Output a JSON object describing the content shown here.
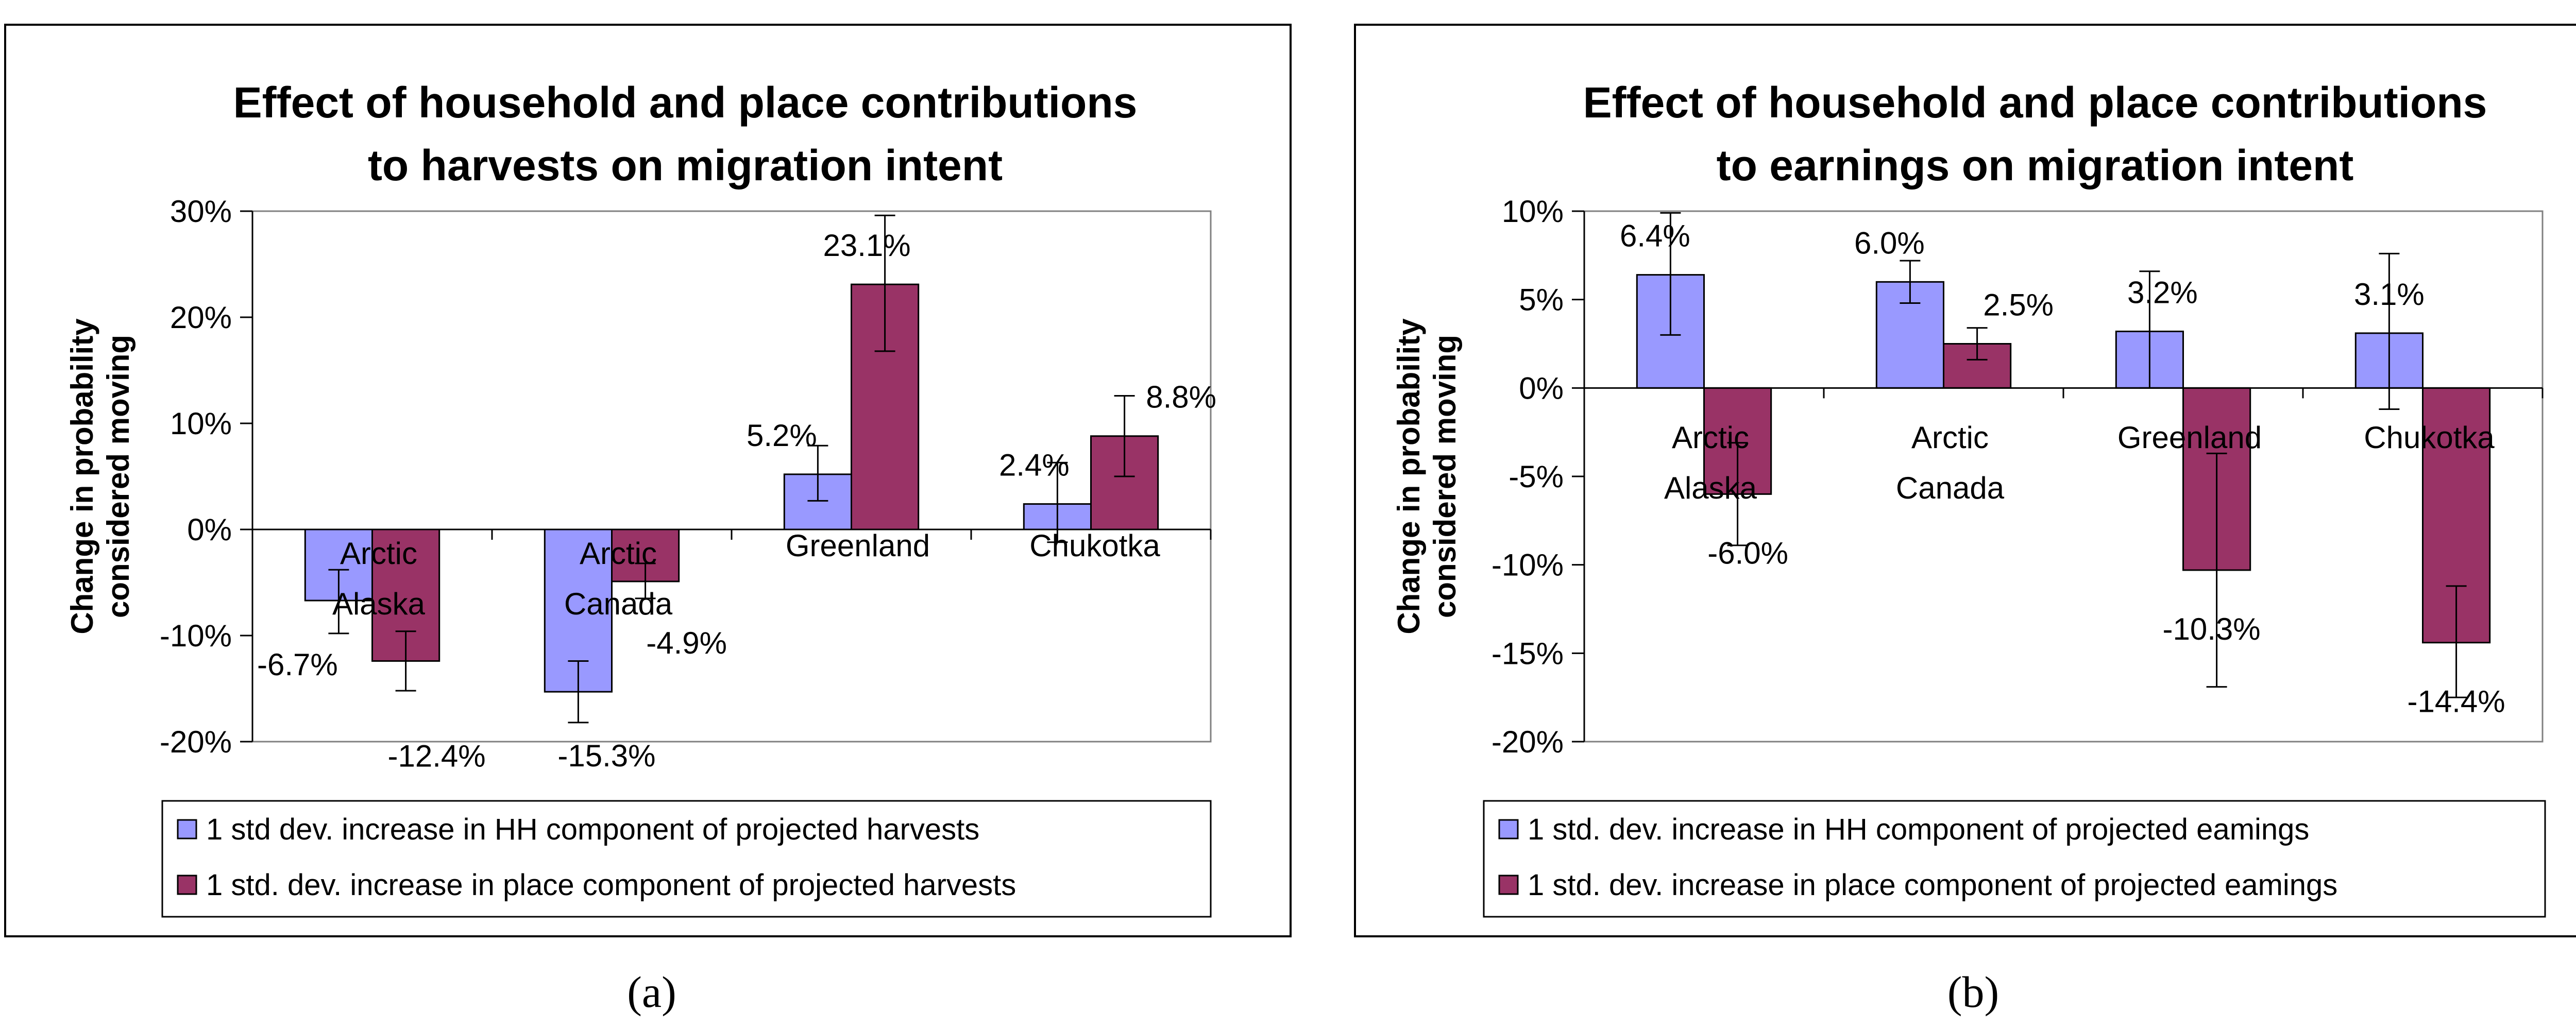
{
  "chart_data": [
    {
      "type": "bar",
      "panel_label": "(a)",
      "title_lines": [
        "Effect of household and place contributions",
        "to harvests on migration intent"
      ],
      "ylabel_lines": [
        "Change in probability",
        "considered moving"
      ],
      "ylim": [
        -0.2,
        0.3
      ],
      "yticks": [
        -0.2,
        -0.1,
        0,
        0.1,
        0.2,
        0.3
      ],
      "ytick_labels": [
        "-20%",
        "-10%",
        "0%",
        "10%",
        "20%",
        "30%"
      ],
      "categories": [
        [
          "Arctic",
          "Alaska"
        ],
        [
          "Arctic",
          "Canada"
        ],
        [
          "Greenland"
        ],
        [
          "Chukotka"
        ]
      ],
      "series": [
        {
          "name": "1 std dev. increase in HH component of projected harvests",
          "color": "#9999ff",
          "values": [
            -0.067,
            -0.153,
            0.052,
            0.024
          ],
          "labels": [
            "-6.7%",
            "-15.3%",
            "5.2%",
            "2.4%"
          ],
          "err_low": [
            -0.098,
            -0.182,
            0.027,
            -0.012
          ],
          "err_high": [
            -0.038,
            -0.124,
            0.079,
            0.063
          ]
        },
        {
          "name": "1 std. dev. increase in place component of projected harvests",
          "color": "#993366",
          "values": [
            -0.124,
            -0.049,
            0.231,
            0.088
          ],
          "labels": [
            "-12.4%",
            "-4.9%",
            "23.1%",
            "8.8%"
          ],
          "err_low": [
            -0.152,
            -0.065,
            0.168,
            0.05
          ],
          "err_high": [
            -0.096,
            -0.032,
            0.296,
            0.126
          ]
        }
      ],
      "legend_position": "bottom"
    },
    {
      "type": "bar",
      "panel_label": "(b)",
      "title_lines": [
        "Effect of household and place contributions",
        "to earnings on migration intent"
      ],
      "ylabel_lines": [
        "Change in probability",
        "considered moving"
      ],
      "ylim": [
        -0.2,
        0.1
      ],
      "yticks": [
        -0.2,
        -0.15,
        -0.1,
        -0.05,
        0,
        0.05,
        0.1
      ],
      "ytick_labels": [
        "-20%",
        "-15%",
        "-10%",
        "-5%",
        "0%",
        "5%",
        "10%"
      ],
      "categories": [
        [
          "Arctic",
          "Alaska"
        ],
        [
          "Arctic",
          "Canada"
        ],
        [
          "Greenland"
        ],
        [
          "Chukotka"
        ]
      ],
      "series": [
        {
          "name": "1 std. dev. increase in HH component of projected eamings",
          "color": "#9999ff",
          "values": [
            0.064,
            0.06,
            0.032,
            0.031
          ],
          "labels": [
            "6.4%",
            "6.0%",
            "3.2%",
            "3.1%"
          ],
          "err_low": [
            0.03,
            0.048,
            0.0,
            -0.012
          ],
          "err_high": [
            0.099,
            0.072,
            0.066,
            0.076
          ]
        },
        {
          "name": "1 std. dev. increase in place component of projected eamings",
          "color": "#993366",
          "values": [
            -0.06,
            0.025,
            -0.103,
            -0.144
          ],
          "labels": [
            "-6.0%",
            "2.5%",
            "-10.3%",
            "-14.4%"
          ],
          "err_low": [
            -0.089,
            0.016,
            -0.169,
            -0.175
          ],
          "err_high": [
            -0.031,
            0.034,
            -0.037,
            -0.112
          ]
        }
      ],
      "legend_position": "bottom"
    }
  ]
}
